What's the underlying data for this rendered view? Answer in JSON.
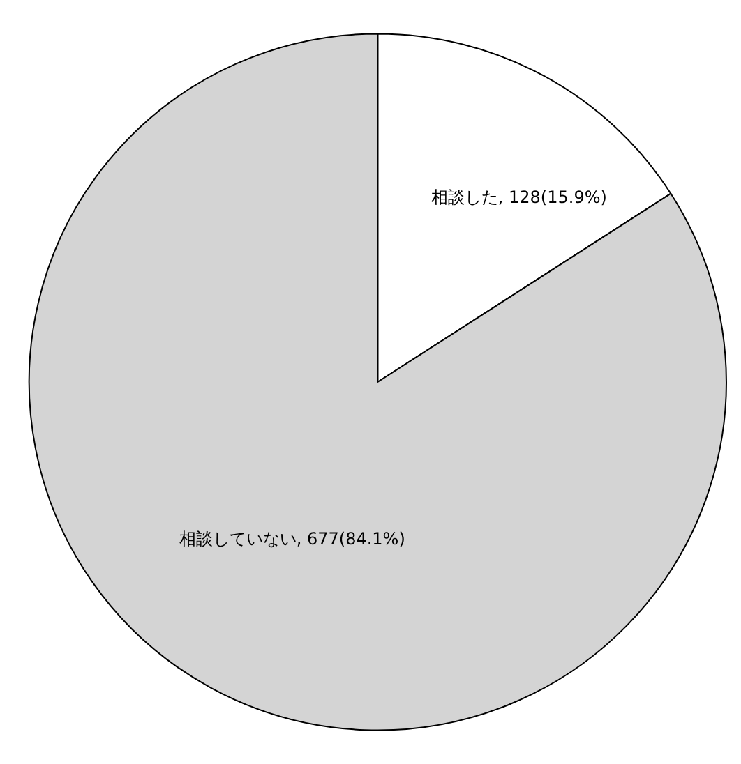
{
  "chart_data": {
    "type": "pie",
    "categories": [
      "相談した",
      "相談していない"
    ],
    "values": [
      128,
      677
    ],
    "colors": [
      "#ffffff",
      "#d4d4d4"
    ],
    "value_labels": [
      "128(15.9%)",
      "677(84.1%)"
    ]
  }
}
